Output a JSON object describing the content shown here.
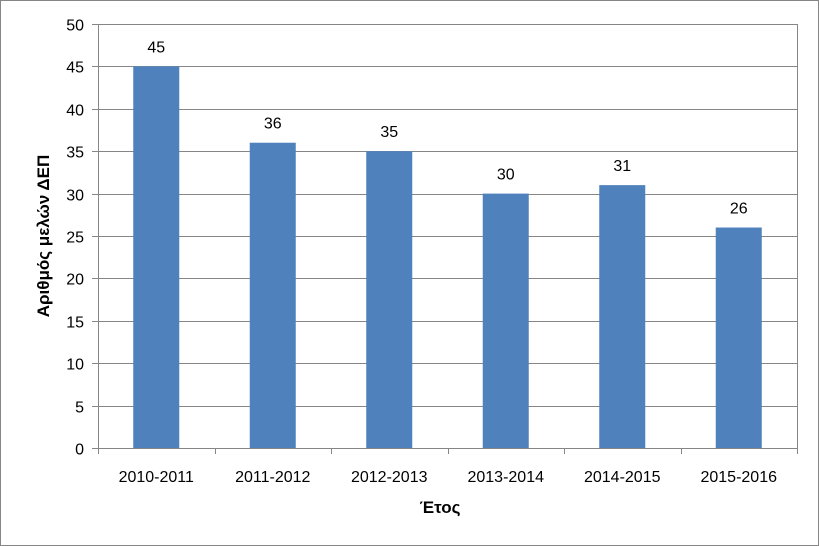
{
  "chart_data": {
    "type": "bar",
    "title": "",
    "xlabel": "Έτος",
    "ylabel": "Αριθμός μελών ΔΕΠ",
    "categories": [
      "2010-2011",
      "2011-2012",
      "2012-2013",
      "2013-2014",
      "2014-2015",
      "2015-2016"
    ],
    "values": [
      45,
      36,
      35,
      30,
      31,
      26
    ],
    "ylim": [
      0,
      50
    ],
    "yticks": [
      0,
      5,
      10,
      15,
      20,
      25,
      30,
      35,
      40,
      45,
      50
    ],
    "grid": true,
    "legend": "none",
    "bar_color": "#4f81bd",
    "grid_color": "#868686",
    "frame_color": "#868686"
  }
}
